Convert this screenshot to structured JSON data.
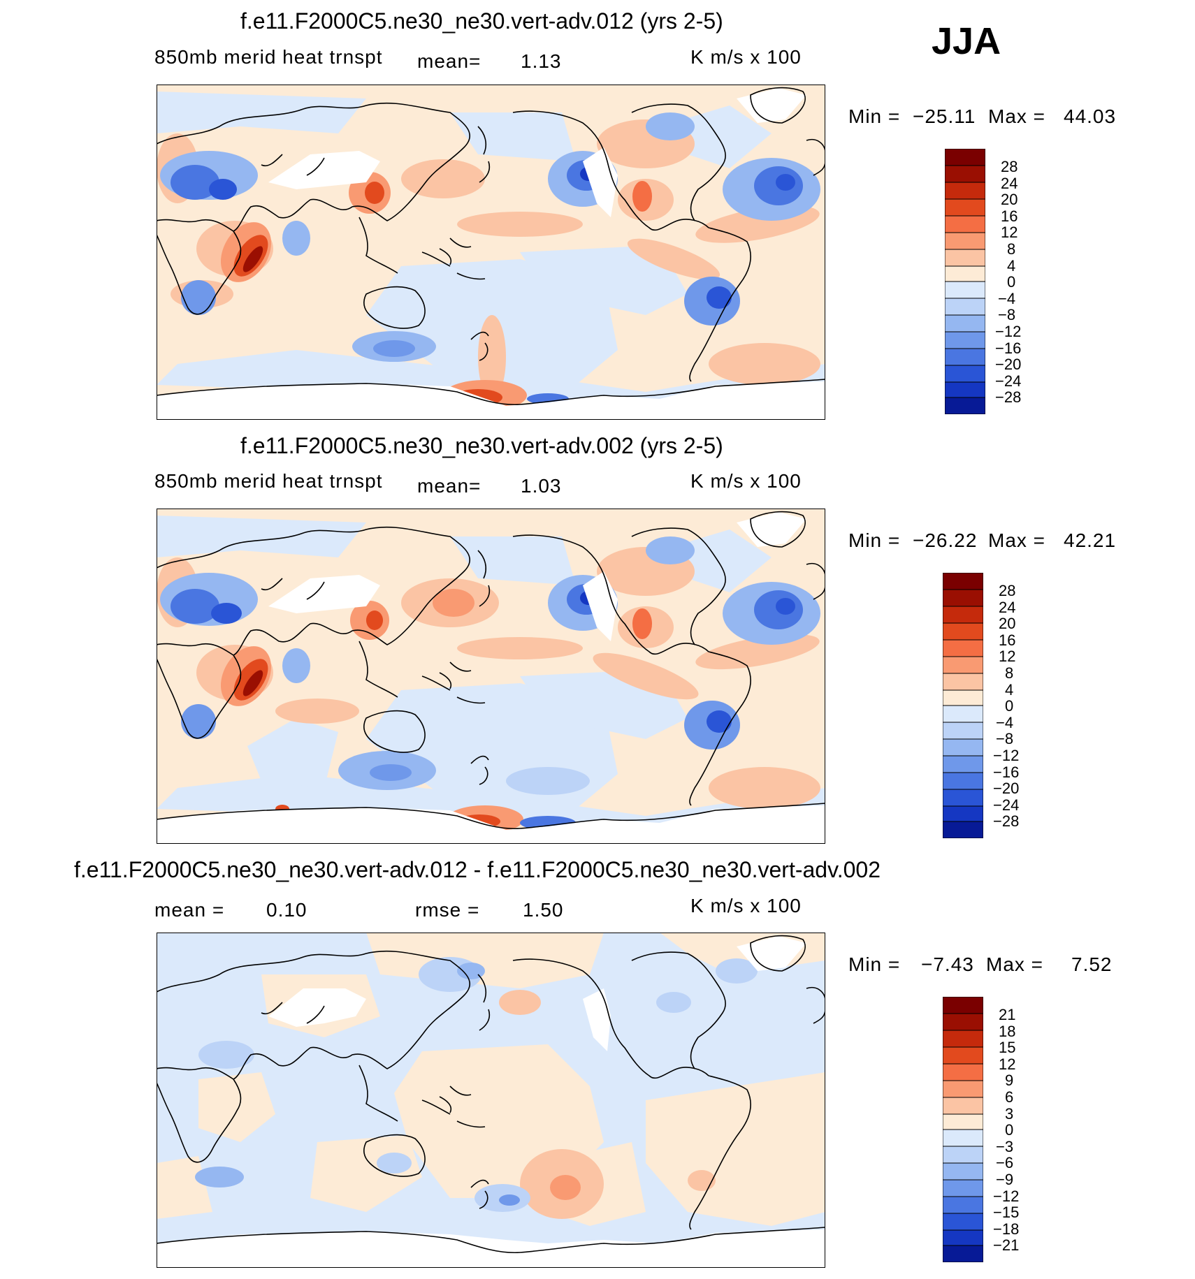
{
  "season": "JJA",
  "colors": {
    "warm": [
      "#fdebd6",
      "#fbc4a4",
      "#f99a72",
      "#f46e44",
      "#e24a1e",
      "#c52a0c",
      "#9a0f02",
      "#7a0000"
    ],
    "cool": [
      "#dbe9fb",
      "#bcd3f7",
      "#95b7f1",
      "#6f98ea",
      "#4a76e1",
      "#2a55d6",
      "#1537c2",
      "#071a96"
    ],
    "land_mask": "#ffffff",
    "coast": "#000000"
  },
  "panels": [
    {
      "title": "f.e11.F2000C5.ne30_ne30.vert-adv.012 (yrs 2-5)",
      "variable": "850mb merid heat trnspt",
      "mean_label": "mean=",
      "mean": "1.13",
      "units": "K m/s x 100",
      "min_label": "Min =",
      "min": "−25.11",
      "max_label": "Max =",
      "max": "44.03",
      "levels": [
        "28",
        "24",
        "20",
        "16",
        "12",
        "8",
        "4",
        "0",
        "−4",
        "−8",
        "−12",
        "−16",
        "−20",
        "−24",
        "−28"
      ]
    },
    {
      "title": "f.e11.F2000C5.ne30_ne30.vert-adv.002 (yrs 2-5)",
      "variable": "850mb merid heat trnspt",
      "mean_label": "mean=",
      "mean": "1.03",
      "units": "K m/s x 100",
      "min_label": "Min =",
      "min": "−26.22",
      "max_label": "Max =",
      "max": "42.21",
      "levels": [
        "28",
        "24",
        "20",
        "16",
        "12",
        "8",
        "4",
        "0",
        "−4",
        "−8",
        "−12",
        "−16",
        "−20",
        "−24",
        "−28"
      ]
    },
    {
      "title": "f.e11.F2000C5.ne30_ne30.vert-adv.012 - f.e11.F2000C5.ne30_ne30.vert-adv.002",
      "mean_label": "mean =",
      "mean": "0.10",
      "rmse_label": "rmse =",
      "rmse": "1.50",
      "units": "K m/s x 100",
      "min_label": "Min =",
      "min": "−7.43",
      "max_label": "Max =",
      "max": "7.52",
      "levels": [
        "21",
        "18",
        "15",
        "12",
        "9",
        "6",
        "3",
        "0",
        "−3",
        "−6",
        "−9",
        "−12",
        "−15",
        "−18",
        "−21"
      ]
    }
  ]
}
